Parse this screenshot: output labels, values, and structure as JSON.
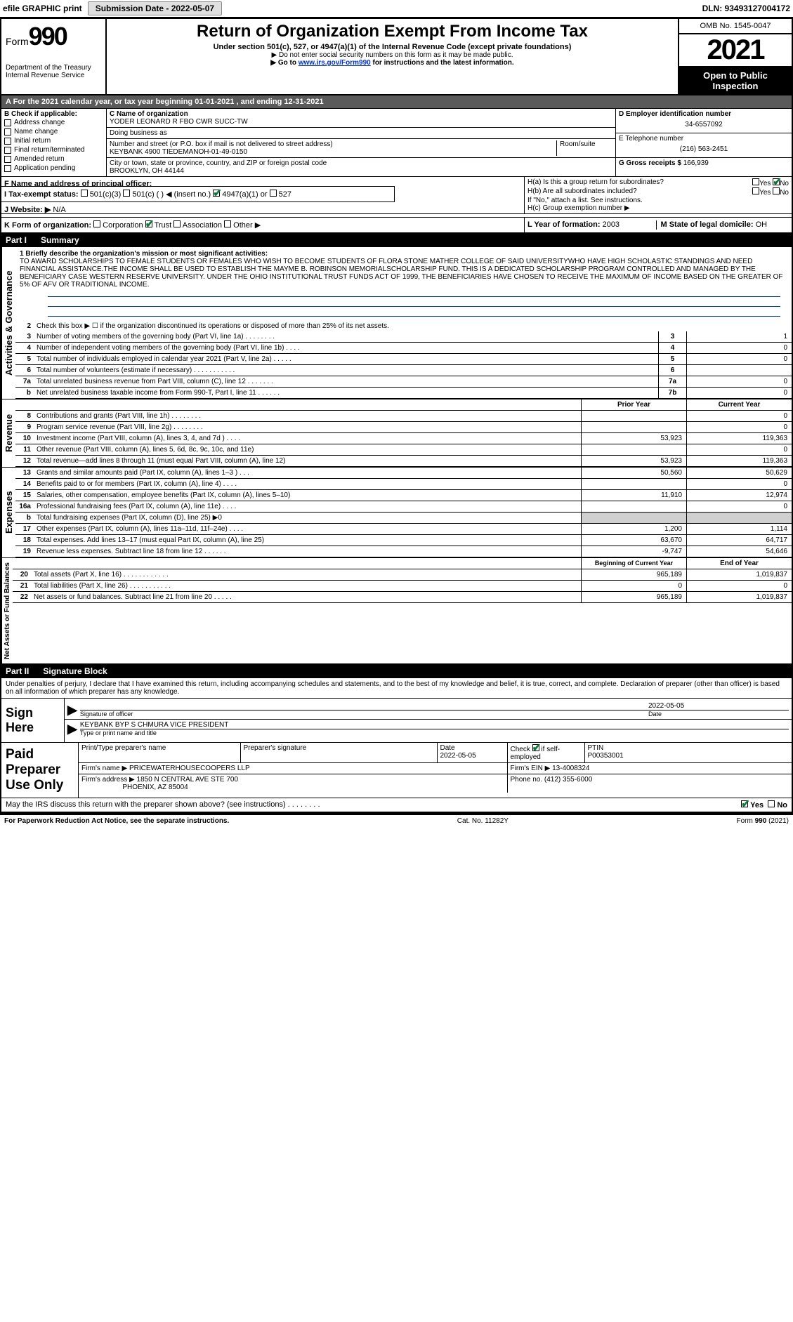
{
  "top": {
    "efile": "efile GRAPHIC print",
    "submission_label": "Submission Date - 2022-05-07",
    "dln": "DLN: 93493127004172"
  },
  "header": {
    "form_prefix": "Form",
    "form_number": "990",
    "dept": "Department of the Treasury",
    "irs": "Internal Revenue Service",
    "title": "Return of Organization Exempt From Income Tax",
    "subtitle": "Under section 501(c), 527, or 4947(a)(1) of the Internal Revenue Code (except private foundations)",
    "note1": "▶ Do not enter social security numbers on this form as it may be made public.",
    "note2_pre": "▶ Go to ",
    "note2_link": "www.irs.gov/Form990",
    "note2_post": " for instructions and the latest information.",
    "omb": "OMB No. 1545-0047",
    "year": "2021",
    "open": "Open to Public Inspection"
  },
  "line_a": "A For the 2021 calendar year, or tax year beginning 01-01-2021    , and ending 12-31-2021",
  "b": {
    "label": "B Check if applicable:",
    "items": [
      "Address change",
      "Name change",
      "Initial return",
      "Final return/terminated",
      "Amended return",
      "Application pending"
    ]
  },
  "c": {
    "label": "C Name of organization",
    "name": "YODER LEONARD R FBO CWR SUCC-TW",
    "dba_label": "Doing business as",
    "addr_label": "Number and street (or P.O. box if mail is not delivered to street address)",
    "addr": "KEYBANK 4900 TIEDEMANOH-01-49-0150",
    "room_label": "Room/suite",
    "city_label": "City or town, state or province, country, and ZIP or foreign postal code",
    "city": "BROOKLYN, OH  44144"
  },
  "d": {
    "label": "D Employer identification number",
    "value": "34-6557092"
  },
  "e": {
    "label": "E Telephone number",
    "value": "(216) 563-2451"
  },
  "g": {
    "label": "G Gross receipts $",
    "value": "166,939"
  },
  "f": {
    "label": "F  Name and address of principal officer:"
  },
  "h": {
    "a": "H(a)  Is this a group return for subordinates?",
    "b": "H(b)  Are all subordinates included?",
    "b_note": "If \"No,\" attach a list. See instructions.",
    "c": "H(c)  Group exemption number ▶",
    "yes": "Yes",
    "no": "No"
  },
  "i": {
    "label": "I    Tax-exempt status:",
    "opts": [
      "501(c)(3)",
      "501(c) (  ) ◀ (insert no.)",
      "4947(a)(1) or",
      "527"
    ]
  },
  "j": {
    "label": "J   Website: ▶",
    "value": "N/A"
  },
  "k": {
    "label": "K Form of organization:",
    "opts": [
      "Corporation",
      "Trust",
      "Association",
      "Other ▶"
    ]
  },
  "l": {
    "label": "L Year of formation:",
    "value": "2003"
  },
  "m": {
    "label": "M State of legal domicile:",
    "value": "OH"
  },
  "part1": {
    "label": "Part I",
    "title": "Summary"
  },
  "mission": {
    "label": "1    Briefly describe the organization's mission or most significant activities:",
    "text": "TO AWARD SCHOLARSHIPS TO FEMALE STUDENTS OR FEMALES WHO WISH TO BECOME STUDENTS OF FLORA STONE MATHER COLLEGE OF SAID UNIVERSITYWHO HAVE HIGH SCHOLASTIC STANDINGS AND NEED FINANCIAL ASSISTANCE.THE INCOME SHALL BE USED TO ESTABLISH THE MAYME B. ROBINSON MEMORIALSCHOLARSHIP FUND. THIS IS A DEDICATED SCHOLARSHIP PROGRAM CONTROLLED AND MANAGED BY THE BENEFICIARY CASE WESTERN RESERVE UNIVERSITY. UNDER THE OHIO INSTITUTIONAL TRUST FUNDS ACT OF 1999, THE BENEFICIARIES HAVE CHOSEN TO RECEIVE THE MAXIMUM OF INCOME BASED ON THE GREATER OF 5% OF AFV OR TRADITIONAL INCOME."
  },
  "lines": {
    "l2": "Check this box ▶ ☐ if the organization discontinued its operations or disposed of more than 25% of its net assets.",
    "l3": {
      "n": "3",
      "t": "Number of voting members of the governing body (Part VI, line 1a)  .    .    .    .    .    .    .    .",
      "b": "3",
      "v": "1"
    },
    "l4": {
      "n": "4",
      "t": "Number of independent voting members of the governing body (Part VI, line 1b)   .    .    .    .",
      "b": "4",
      "v": "0"
    },
    "l5": {
      "n": "5",
      "t": "Total number of individuals employed in calendar year 2021 (Part V, line 2a)   .    .    .    .    .",
      "b": "5",
      "v": "0"
    },
    "l6": {
      "n": "6",
      "t": "Total number of volunteers (estimate if necessary)   .    .    .    .    .    .    .    .    .    .    .",
      "b": "6",
      "v": ""
    },
    "l7a": {
      "n": "7a",
      "t": "Total unrelated business revenue from Part VIII, column (C), line 12   .    .    .    .    .    .    .",
      "b": "7a",
      "v": "0"
    },
    "l7b": {
      "n": "b",
      "t": "Net unrelated business taxable income from Form 990-T, Part I, line 11   .    .    .    .    .    .",
      "b": "7b",
      "v": "0"
    }
  },
  "rev_header": {
    "prior": "Prior Year",
    "current": "Current Year"
  },
  "revenue": [
    {
      "n": "8",
      "t": "Contributions and grants (Part VIII, line 1h)   .    .    .    .    .    .    .    .",
      "p": "",
      "c": "0"
    },
    {
      "n": "9",
      "t": "Program service revenue (Part VIII, line 2g)   .    .    .    .    .    .    .    .",
      "p": "",
      "c": "0"
    },
    {
      "n": "10",
      "t": "Investment income (Part VIII, column (A), lines 3, 4, and 7d )   .    .    .    .",
      "p": "53,923",
      "c": "119,363"
    },
    {
      "n": "11",
      "t": "Other revenue (Part VIII, column (A), lines 5, 6d, 8c, 9c, 10c, and 11e)",
      "p": "",
      "c": "0"
    },
    {
      "n": "12",
      "t": "Total revenue—add lines 8 through 11 (must equal Part VIII, column (A), line 12)",
      "p": "53,923",
      "c": "119,363"
    }
  ],
  "expenses": [
    {
      "n": "13",
      "t": "Grants and similar amounts paid (Part IX, column (A), lines 1–3 )   .    .    .",
      "p": "50,560",
      "c": "50,629"
    },
    {
      "n": "14",
      "t": "Benefits paid to or for members (Part IX, column (A), line 4)   .    .    .    .",
      "p": "",
      "c": "0"
    },
    {
      "n": "15",
      "t": "Salaries, other compensation, employee benefits (Part IX, column (A), lines 5–10)",
      "p": "11,910",
      "c": "12,974"
    },
    {
      "n": "16a",
      "t": "Professional fundraising fees (Part IX, column (A), line 11e)   .    .    .    .",
      "p": "",
      "c": "0"
    },
    {
      "n": "b",
      "t": "Total fundraising expenses (Part IX, column (D), line 25) ▶0",
      "p": "grey",
      "c": "grey"
    },
    {
      "n": "17",
      "t": "Other expenses (Part IX, column (A), lines 11a–11d, 11f–24e)   .    .    .    .",
      "p": "1,200",
      "c": "1,114"
    },
    {
      "n": "18",
      "t": "Total expenses. Add lines 13–17 (must equal Part IX, column (A), line 25)",
      "p": "63,670",
      "c": "64,717"
    },
    {
      "n": "19",
      "t": "Revenue less expenses. Subtract line 18 from line 12   .    .    .    .    .    .",
      "p": "-9,747",
      "c": "54,646"
    }
  ],
  "na_header": {
    "begin": "Beginning of Current Year",
    "end": "End of Year"
  },
  "netassets": [
    {
      "n": "20",
      "t": "Total assets (Part X, line 16)   .    .    .    .    .    .    .    .    .    .    .    .",
      "p": "965,189",
      "c": "1,019,837"
    },
    {
      "n": "21",
      "t": "Total liabilities (Part X, line 26)   .    .    .    .    .    .    .    .    .    .    .",
      "p": "0",
      "c": "0"
    },
    {
      "n": "22",
      "t": "Net assets or fund balances. Subtract line 21 from line 20   .    .    .    .    .",
      "p": "965,189",
      "c": "1,019,837"
    }
  ],
  "part2": {
    "label": "Part II",
    "title": "Signature Block"
  },
  "sig": {
    "decl": "Under penalties of perjury, I declare that I have examined this return, including accompanying schedules and statements, and to the best of my knowledge and belief, it is true, correct, and complete. Declaration of preparer (other than officer) is based on all information of which preparer has any knowledge.",
    "sign_here": "Sign Here",
    "sig_officer": "Signature of officer",
    "date_label": "Date",
    "date": "2022-05-05",
    "name": "KEYBANK BYP S CHMURA  VICE PRESIDENT",
    "name_label": "Type or print name and title"
  },
  "prep": {
    "label": "Paid Preparer Use Only",
    "h1": "Print/Type preparer's name",
    "h2": "Preparer's signature",
    "h3": "Date",
    "date": "2022-05-05",
    "h4_a": "Check",
    "h4_b": "if self-employed",
    "h5": "PTIN",
    "ptin": "P00353001",
    "firm_name_l": "Firm's name    ▶",
    "firm_name": "PRICEWATERHOUSECOOPERS LLP",
    "firm_ein_l": "Firm's EIN ▶",
    "firm_ein": "13-4008324",
    "firm_addr_l": "Firm's address ▶",
    "firm_addr1": "1850 N CENTRAL AVE STE 700",
    "firm_addr2": "PHOENIX, AZ  85004",
    "phone_l": "Phone no.",
    "phone": "(412) 355-6000"
  },
  "bottom": {
    "discuss": "May the IRS discuss this return with the preparer shown above? (see instructions)   .    .    .    .    .    .    .    .",
    "yes": "Yes",
    "no": "No",
    "pra": "For Paperwork Reduction Act Notice, see the separate instructions.",
    "cat": "Cat. No. 11282Y",
    "form": "Form 990 (2021)"
  },
  "vlabels": {
    "ag": "Activities & Governance",
    "rev": "Revenue",
    "exp": "Expenses",
    "na": "Net Assets or Fund Balances"
  }
}
